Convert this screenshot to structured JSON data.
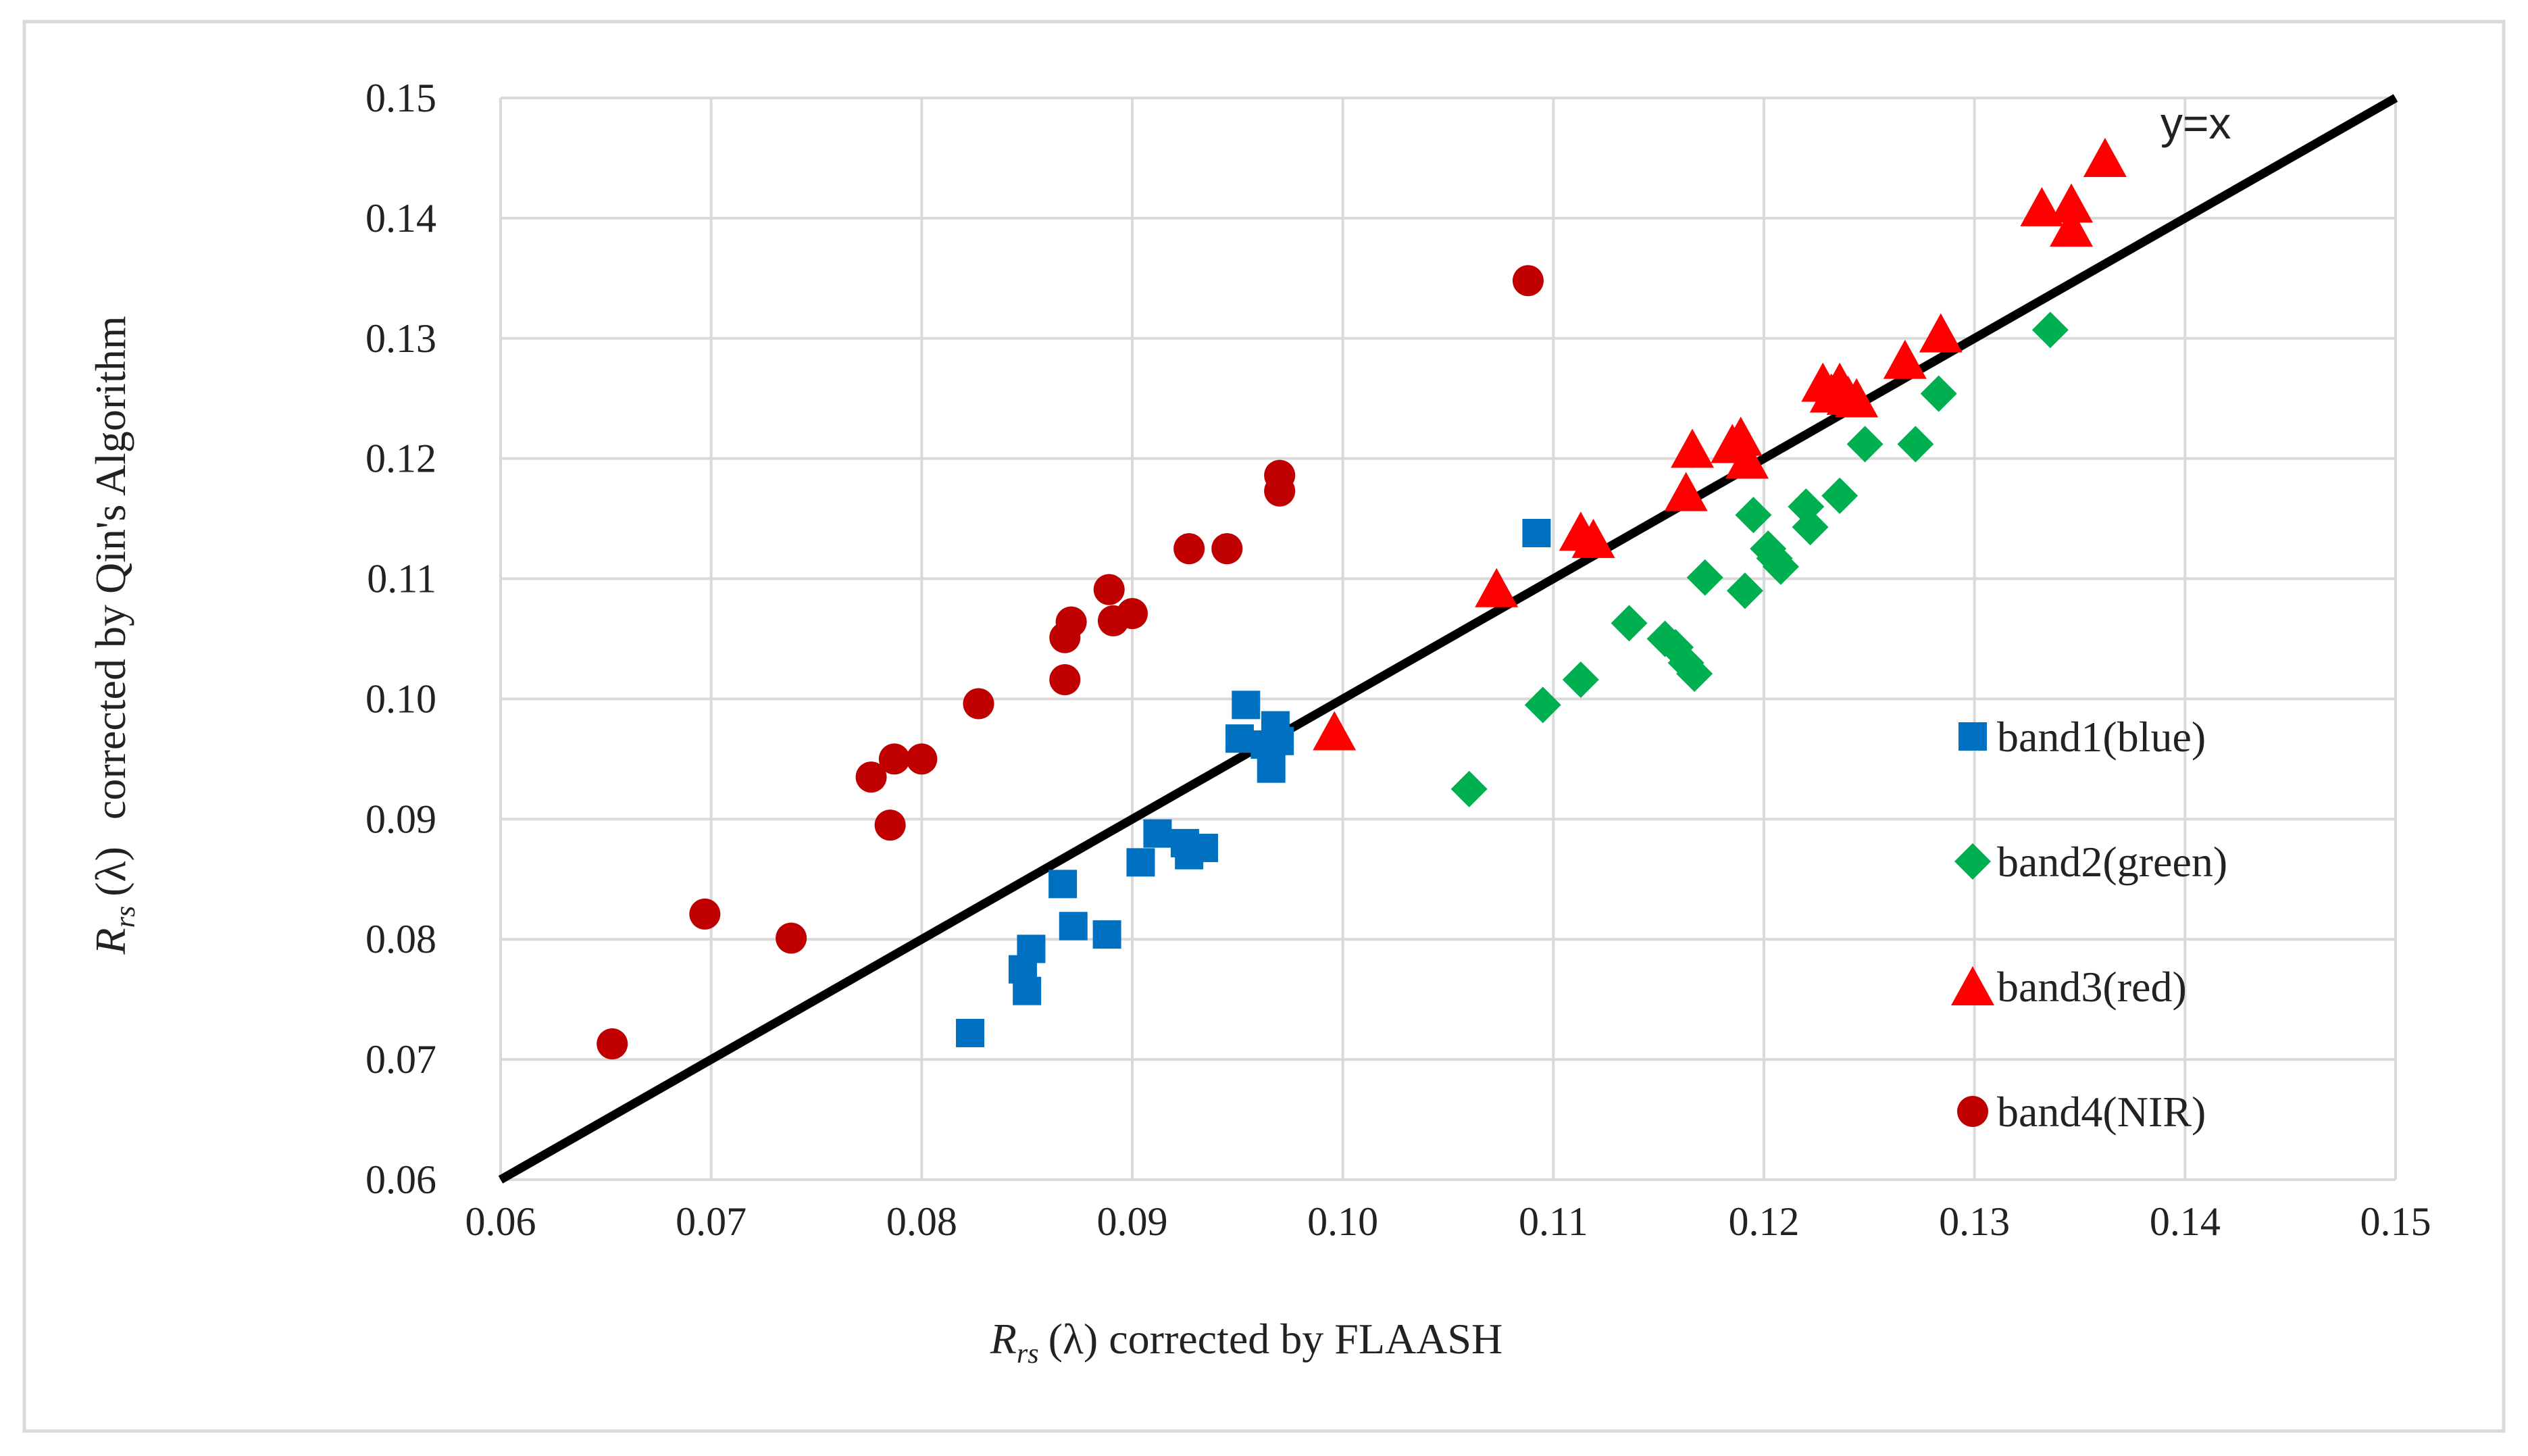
{
  "chart_data": {
    "type": "scatter",
    "title": "",
    "xlabel": {
      "symbol": "R",
      "subscript": "rs",
      "lambda": "(λ)",
      "text": "corrected by FLAASH"
    },
    "ylabel": {
      "symbol": "R",
      "subscript": "rs",
      "lambda": "(λ)",
      "text": "corrected by Qin's Algorithm"
    },
    "xlim": [
      0.06,
      0.15
    ],
    "ylim": [
      0.06,
      0.15
    ],
    "x_ticks": [
      "0.06",
      "0.07",
      "0.08",
      "0.09",
      "0.10",
      "0.11",
      "0.12",
      "0.13",
      "0.14",
      "0.15"
    ],
    "y_ticks": [
      "0.06",
      "0.07",
      "0.08",
      "0.09",
      "0.10",
      "0.11",
      "0.12",
      "0.13",
      "0.14",
      "0.15"
    ],
    "grid": true,
    "legend_position": "right",
    "reference_line": {
      "label": "y=x",
      "from": [
        0.06,
        0.06
      ],
      "to": [
        0.15,
        0.15
      ],
      "color": "#000000"
    },
    "series": [
      {
        "name": "band1(blue)",
        "marker": "square",
        "color": "#0070C0",
        "points": [
          [
            0.0823,
            0.0722
          ],
          [
            0.0848,
            0.0775
          ],
          [
            0.085,
            0.0757
          ],
          [
            0.0852,
            0.0792
          ],
          [
            0.0867,
            0.0846
          ],
          [
            0.0872,
            0.0811
          ],
          [
            0.0888,
            0.0804
          ],
          [
            0.0904,
            0.0864
          ],
          [
            0.0912,
            0.0888
          ],
          [
            0.0925,
            0.088
          ],
          [
            0.0927,
            0.087
          ],
          [
            0.0934,
            0.0876
          ],
          [
            0.0951,
            0.0967
          ],
          [
            0.0954,
            0.0995
          ],
          [
            0.0963,
            0.0962
          ],
          [
            0.0966,
            0.0942
          ],
          [
            0.0968,
            0.0978
          ],
          [
            0.097,
            0.0965
          ],
          [
            0.1092,
            0.1138
          ]
        ]
      },
      {
        "name": "band2(green)",
        "marker": "diamond",
        "color": "#00B050",
        "points": [
          [
            0.106,
            0.0925
          ],
          [
            0.1095,
            0.0995
          ],
          [
            0.1113,
            0.1016
          ],
          [
            0.1136,
            0.1063
          ],
          [
            0.1153,
            0.105
          ],
          [
            0.1158,
            0.1043
          ],
          [
            0.1163,
            0.103
          ],
          [
            0.1167,
            0.1021
          ],
          [
            0.1172,
            0.1101
          ],
          [
            0.1191,
            0.109
          ],
          [
            0.1195,
            0.1153
          ],
          [
            0.1202,
            0.1125
          ],
          [
            0.1205,
            0.1117
          ],
          [
            0.1208,
            0.111
          ],
          [
            0.122,
            0.116
          ],
          [
            0.1222,
            0.1143
          ],
          [
            0.1236,
            0.1169
          ],
          [
            0.1248,
            0.1212
          ],
          [
            0.1272,
            0.1212
          ],
          [
            0.1283,
            0.1254
          ],
          [
            0.1336,
            0.1307
          ]
        ]
      },
      {
        "name": "band3(red)",
        "marker": "triangle",
        "color": "#FF0000",
        "points": [
          [
            0.0996,
            0.0973
          ],
          [
            0.1073,
            0.1092
          ],
          [
            0.1113,
            0.1139
          ],
          [
            0.1119,
            0.1133
          ],
          [
            0.1163,
            0.1172
          ],
          [
            0.1166,
            0.1208
          ],
          [
            0.1185,
            0.1212
          ],
          [
            0.1189,
            0.1218
          ],
          [
            0.1192,
            0.1199
          ],
          [
            0.1228,
            0.1263
          ],
          [
            0.1232,
            0.1254
          ],
          [
            0.1236,
            0.1263
          ],
          [
            0.124,
            0.1252
          ],
          [
            0.1244,
            0.125
          ],
          [
            0.1267,
            0.1282
          ],
          [
            0.1284,
            0.1304
          ],
          [
            0.1332,
            0.1409
          ],
          [
            0.1346,
            0.1412
          ],
          [
            0.1346,
            0.1392
          ],
          [
            0.1362,
            0.145
          ]
        ]
      },
      {
        "name": "band4(NIR)",
        "marker": "circle",
        "color": "#C00000",
        "points": [
          [
            0.0653,
            0.0713
          ],
          [
            0.0697,
            0.0821
          ],
          [
            0.0738,
            0.0801
          ],
          [
            0.0776,
            0.0935
          ],
          [
            0.0785,
            0.0895
          ],
          [
            0.0787,
            0.095
          ],
          [
            0.08,
            0.095
          ],
          [
            0.0827,
            0.0996
          ],
          [
            0.0868,
            0.1016
          ],
          [
            0.0868,
            0.1051
          ],
          [
            0.0871,
            0.1064
          ],
          [
            0.0889,
            0.1091
          ],
          [
            0.0891,
            0.1065
          ],
          [
            0.09,
            0.1071
          ],
          [
            0.0927,
            0.1125
          ],
          [
            0.0945,
            0.1125
          ],
          [
            0.097,
            0.1173
          ],
          [
            0.097,
            0.1186
          ],
          [
            0.1088,
            0.1348
          ]
        ]
      }
    ]
  }
}
